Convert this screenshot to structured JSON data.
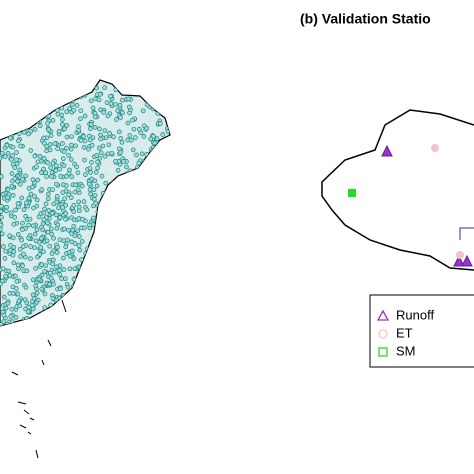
{
  "title": "(b) Validation Statio",
  "legend": [
    "Runoff",
    "ET",
    "SM"
  ]
}
